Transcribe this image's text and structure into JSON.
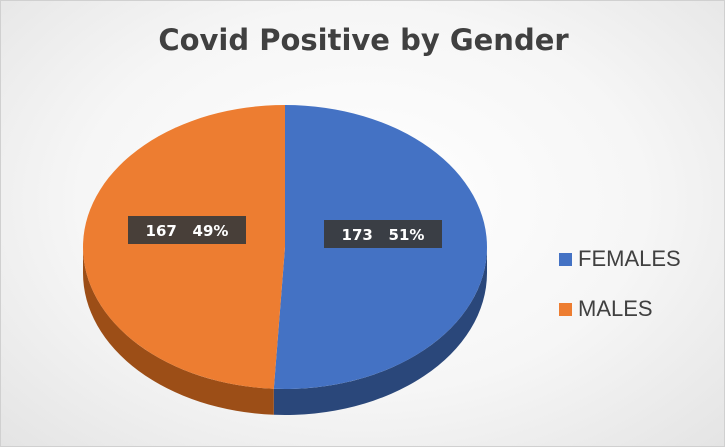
{
  "chart_data": {
    "type": "pie",
    "title": "Covid Positive by Gender",
    "slices": [
      {
        "label": "FEMALES",
        "value": 173,
        "percent": "51%",
        "color": "#4472C4",
        "side_color": "#2A477A"
      },
      {
        "label": "MALES",
        "value": 167,
        "percent": "49%",
        "color": "#ED7D31",
        "side_color": "#9C4E17"
      }
    ],
    "legend_position": "right",
    "style": "3d"
  }
}
